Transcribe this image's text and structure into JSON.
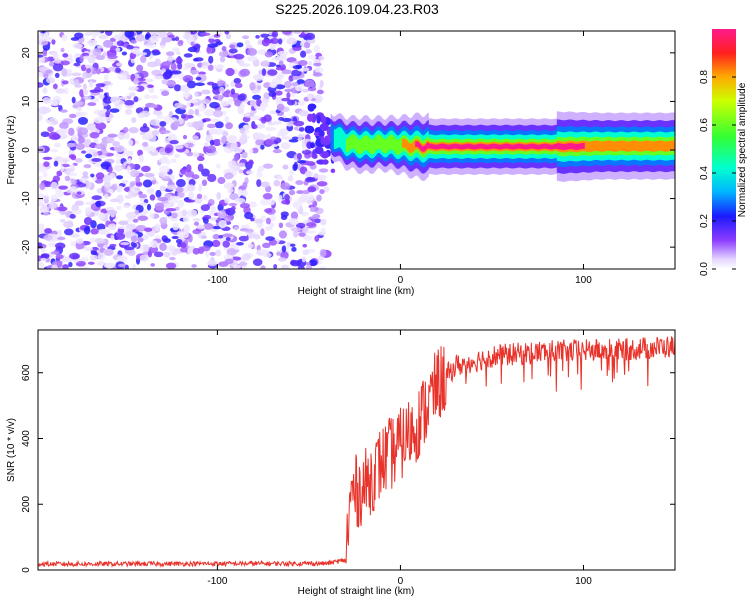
{
  "title": "S225.2026.109.04.23.R03",
  "colors": {
    "line": "#e8322a",
    "background": "#ffffff",
    "axis": "#000000",
    "scatter_fill": "#6a1be8",
    "scatter_light": "#d7c6fb"
  },
  "chart_data": [
    {
      "type": "heatmap",
      "name": "spectrogram",
      "xlabel": "Height of straight line (km)",
      "ylabel": "Frequency (Hz)",
      "xlim": [
        -198,
        150
      ],
      "ylim": [
        -24.5,
        24.5
      ],
      "xticks": [
        -100,
        0,
        100
      ],
      "yticks": [
        -20,
        -10,
        0,
        10,
        20
      ],
      "xticklabels": [
        "-100",
        "0",
        "100"
      ],
      "yticklabels": [
        "-20",
        "-10",
        "0",
        "10",
        "20"
      ],
      "noise_region": {
        "x_range": [
          -198,
          -42
        ],
        "y_range": [
          -24.5,
          24.5
        ],
        "amplitude_range": [
          0.0,
          0.2
        ]
      },
      "transition_region": {
        "x_range": [
          -50,
          -36
        ],
        "center_freq": 4.5
      },
      "signal_band": [
        {
          "x": -38,
          "freq": 3.0,
          "amplitude": 0.32
        },
        {
          "x": -30,
          "freq": 1.5,
          "amplitude": 0.55
        },
        {
          "x": -20,
          "freq": 1.0,
          "amplitude": 0.7
        },
        {
          "x": -10,
          "freq": 1.3,
          "amplitude": 0.6
        },
        {
          "x": 0,
          "freq": 1.0,
          "amplitude": 0.75
        },
        {
          "x": 10,
          "freq": 0.7,
          "amplitude": 1.0
        },
        {
          "x": 50,
          "freq": 0.7,
          "amplitude": 1.0
        },
        {
          "x": 90,
          "freq": 0.7,
          "amplitude": 1.0
        },
        {
          "x": 110,
          "freq": 0.8,
          "amplitude": 0.9
        },
        {
          "x": 150,
          "freq": 0.8,
          "amplitude": 0.9
        }
      ],
      "colorbar": {
        "label": "Normalized spectral amplitude",
        "range": [
          0.0,
          1.0
        ],
        "ticks": [
          0.0,
          0.2,
          0.4,
          0.6,
          0.8
        ],
        "ticklabels": [
          "0.0",
          "0.2",
          "0.4",
          "0.6",
          "0.8"
        ]
      }
    },
    {
      "type": "line",
      "name": "snr",
      "xlabel": "Height of straight line (km)",
      "ylabel": "SNR (10 * v/v)",
      "xlim": [
        -198,
        150
      ],
      "ylim": [
        0,
        730
      ],
      "xticks": [
        -100,
        0,
        100
      ],
      "yticks": [
        0,
        200,
        400,
        600
      ],
      "xticklabels": [
        "-100",
        "0",
        "100"
      ],
      "yticklabels": [
        "0",
        "200",
        "400",
        "600"
      ],
      "trend": [
        {
          "x": -198,
          "snr": 18
        },
        {
          "x": -40,
          "snr": 20
        },
        {
          "x": -30,
          "snr": 30
        },
        {
          "x": -27,
          "snr": 230
        },
        {
          "x": -20,
          "snr": 250
        },
        {
          "x": -10,
          "snr": 330
        },
        {
          "x": 0,
          "snr": 380
        },
        {
          "x": 10,
          "snr": 450
        },
        {
          "x": 20,
          "snr": 560
        },
        {
          "x": 30,
          "snr": 620
        },
        {
          "x": 50,
          "snr": 650
        },
        {
          "x": 80,
          "snr": 665
        },
        {
          "x": 120,
          "snr": 670
        },
        {
          "x": 150,
          "snr": 680
        }
      ]
    }
  ]
}
